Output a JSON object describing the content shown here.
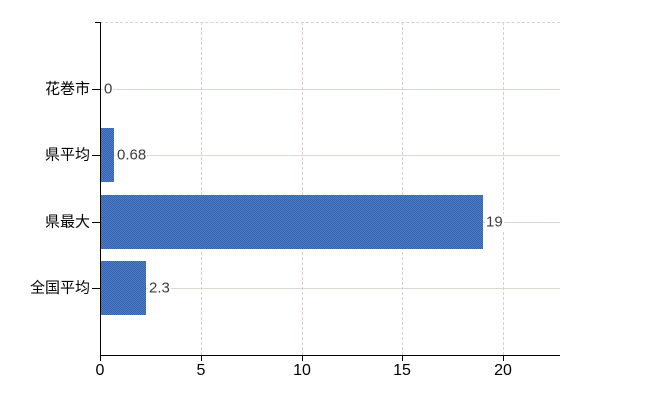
{
  "chart_data": {
    "type": "bar",
    "orientation": "horizontal",
    "title": "",
    "xlabel": "",
    "ylabel": "",
    "categories": [
      "花巻市",
      "県平均",
      "県最大",
      "全国平均"
    ],
    "values": [
      0,
      0.68,
      19,
      2.3
    ],
    "value_labels": [
      "0",
      "0.68",
      "19",
      "2.3"
    ],
    "x_ticks": [
      0,
      5,
      10,
      15,
      20
    ],
    "x_tick_labels": [
      "0",
      "5",
      "10",
      "15",
      "20"
    ],
    "xlim": [
      0,
      22.8
    ],
    "legend": "none",
    "grid": {
      "vertical_style": "dashed",
      "horizontal_style": "solid",
      "top_border_style": "dashed"
    }
  },
  "colors": {
    "background": "#ffffff",
    "bar": "#3f6db4",
    "bar_dither_dark": "#3463af",
    "bar_dither_light": "#4f7cc4",
    "axis": "#000000",
    "grid_vertical": "#d8cdd8",
    "grid_horizontal": "#d5dcd3",
    "category_label": "#000000",
    "value_label": "#3c3c3c",
    "tick_label": "#000000"
  }
}
